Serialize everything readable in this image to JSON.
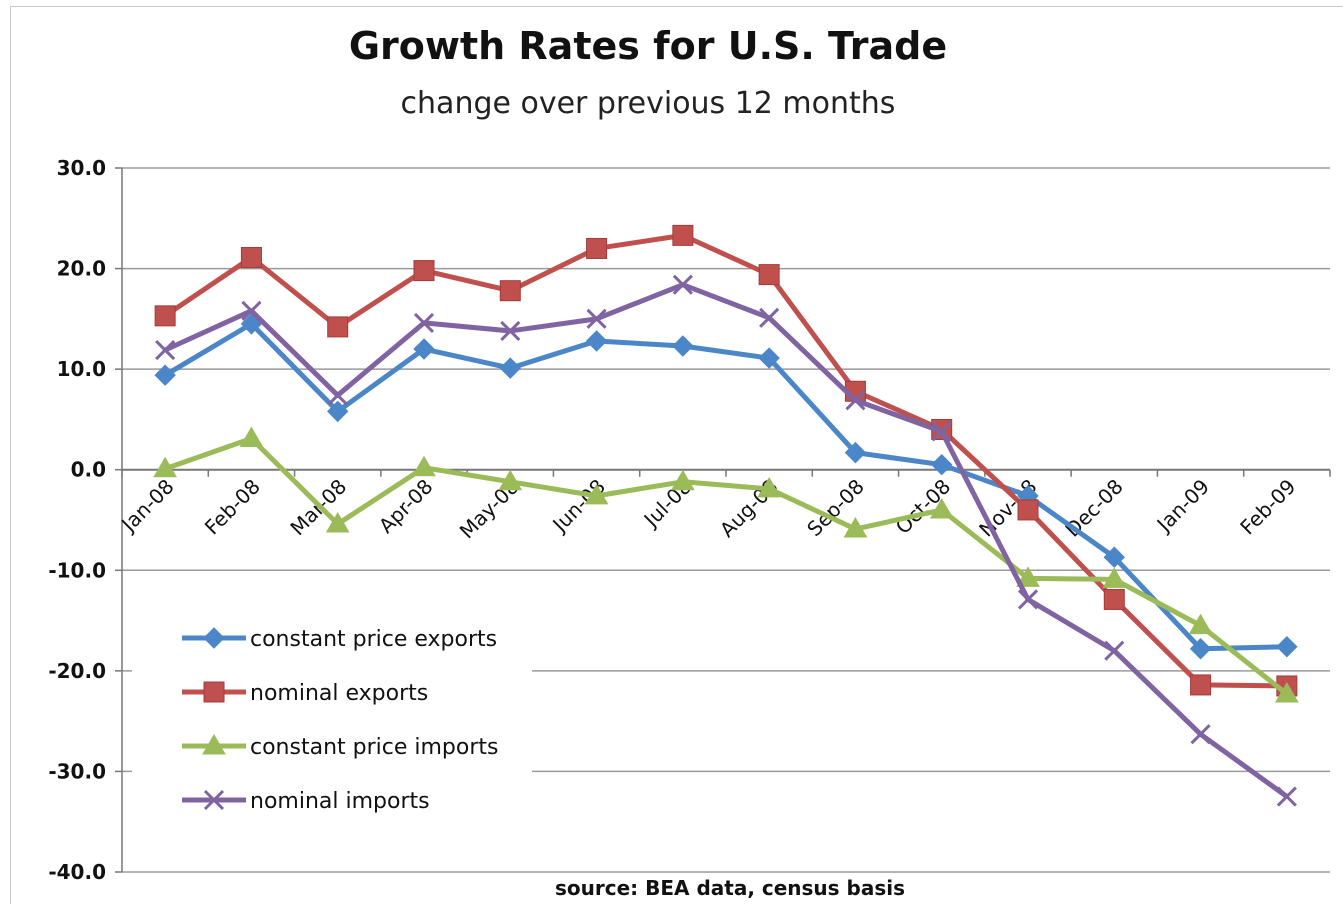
{
  "chart_data": {
    "type": "line",
    "title": "Growth Rates for U.S. Trade",
    "subtitle": "change over previous 12 months",
    "note": "source: BEA data, census basis",
    "categories": [
      "Jan-08",
      "Feb-08",
      "Mar-08",
      "Apr-08",
      "May-08",
      "Jun-08",
      "Jul-08",
      "Aug-08",
      "Sep-08",
      "Oct-08",
      "Nov-08",
      "Dec-08",
      "Jan-09",
      "Feb-09"
    ],
    "ylim": [
      -40,
      30
    ],
    "yticks": [
      "30.0",
      "20.0",
      "10.0",
      "0.0",
      "-10.0",
      "-20.0",
      "-30.0",
      "-40.0"
    ],
    "grid": true,
    "legend_position": "bottom-left",
    "series": [
      {
        "name": "constant price exports",
        "color": "#4a86c8",
        "marker": "diamond",
        "values": [
          9.4,
          14.5,
          5.8,
          12.0,
          10.1,
          12.8,
          12.3,
          11.1,
          1.7,
          0.5,
          -2.6,
          -8.7,
          -17.8,
          -17.6
        ]
      },
      {
        "name": "nominal exports",
        "color": "#c0504d",
        "marker": "square",
        "values": [
          15.3,
          21.1,
          14.2,
          19.8,
          17.8,
          22.0,
          23.3,
          19.4,
          7.8,
          4.0,
          -4.0,
          -12.9,
          -21.4,
          -21.5
        ]
      },
      {
        "name": "constant price imports",
        "color": "#9bbb59",
        "marker": "triangle",
        "values": [
          0.1,
          3.1,
          -5.4,
          0.2,
          -1.2,
          -2.6,
          -1.2,
          -1.9,
          -5.9,
          -4.0,
          -10.8,
          -10.9,
          -15.5,
          -22.3
        ]
      },
      {
        "name": "nominal imports",
        "color": "#8064a2",
        "marker": "x",
        "values": [
          11.9,
          15.8,
          7.4,
          14.6,
          13.8,
          15.0,
          18.4,
          15.1,
          6.9,
          3.8,
          -12.9,
          -18.0,
          -26.3,
          -32.5
        ]
      }
    ]
  }
}
